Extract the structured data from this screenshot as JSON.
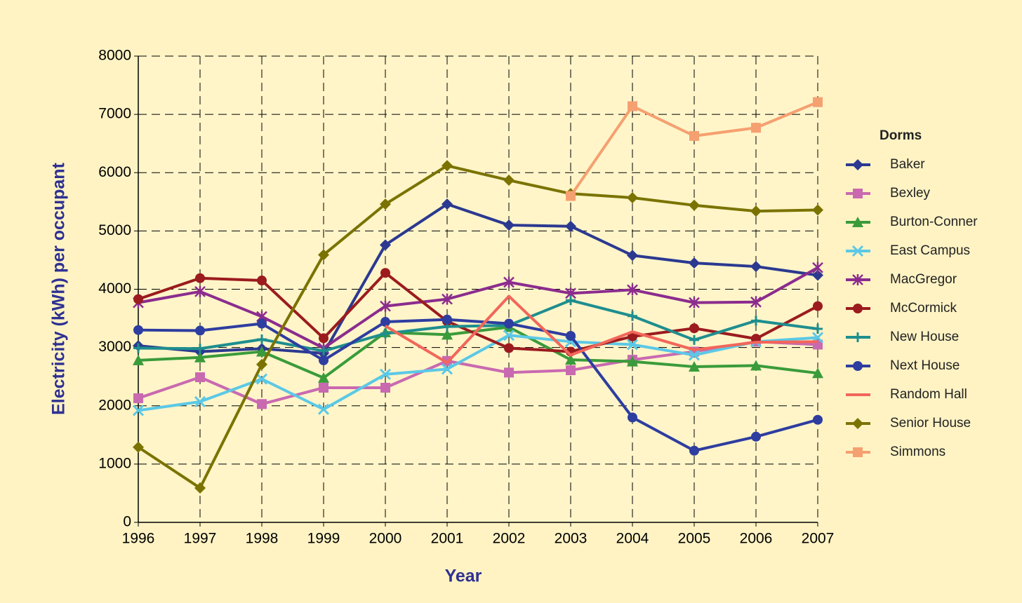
{
  "chart_data": {
    "type": "line",
    "x_label": "Year",
    "y_label": "Electricity (kWh) per occupant",
    "legend_title": "Dorms",
    "legend": "right",
    "grid": true,
    "categories": [
      "1996",
      "1997",
      "1998",
      "1999",
      "2000",
      "2001",
      "2002",
      "2003",
      "2004",
      "2005",
      "2006",
      "2007"
    ],
    "ylim": [
      0,
      8000
    ],
    "yticks": [
      0,
      1000,
      2000,
      3000,
      4000,
      5000,
      6000,
      7000,
      8000
    ],
    "series": [
      {
        "name": "Baker",
        "color": "#2B3990",
        "marker": "diamond",
        "values": [
          3030,
          2930,
          2980,
          2900,
          4760,
          5460,
          5100,
          5080,
          4580,
          4450,
          4390,
          4240
        ]
      },
      {
        "name": "Bexley",
        "color": "#C969B0",
        "marker": "square",
        "values": [
          2130,
          2490,
          2030,
          2310,
          2310,
          2770,
          2570,
          2610,
          2790,
          2930,
          3100,
          3050
        ]
      },
      {
        "name": "Burton-Conner",
        "color": "#3A9B3A",
        "marker": "triangle",
        "values": [
          2780,
          2830,
          2930,
          2480,
          3260,
          3220,
          3350,
          2790,
          2760,
          2670,
          2690,
          2560
        ]
      },
      {
        "name": "East Campus",
        "color": "#5BC8E6",
        "marker": "x",
        "values": [
          1920,
          2070,
          2460,
          1940,
          2540,
          2630,
          3210,
          3100,
          3050,
          2870,
          3100,
          3170
        ]
      },
      {
        "name": "MacGregor",
        "color": "#8B2C8E",
        "marker": "star",
        "values": [
          3770,
          3960,
          3530,
          2990,
          3710,
          3830,
          4120,
          3930,
          3990,
          3770,
          3780,
          4370
        ]
      },
      {
        "name": "McCormick",
        "color": "#9B1B1E",
        "marker": "circle",
        "values": [
          3830,
          4190,
          4150,
          3160,
          4280,
          3450,
          2990,
          2930,
          3190,
          3330,
          3150,
          3710
        ]
      },
      {
        "name": "New House",
        "color": "#1E8E8E",
        "marker": "plus",
        "values": [
          2990,
          2980,
          3140,
          2940,
          3240,
          3360,
          3380,
          3810,
          3540,
          3130,
          3460,
          3320
        ]
      },
      {
        "name": "Next House",
        "color": "#2E3DA0",
        "marker": "circle",
        "values": [
          3300,
          3290,
          3410,
          2780,
          3440,
          3480,
          3410,
          3200,
          1800,
          1230,
          1470,
          1760
        ]
      },
      {
        "name": "Random Hall",
        "color": "#F2665A",
        "marker": "none",
        "values": [
          null,
          null,
          null,
          null,
          3370,
          2740,
          3880,
          2870,
          3270,
          2960,
          3090,
          3100
        ]
      },
      {
        "name": "Senior House",
        "color": "#7A7300",
        "marker": "diamond",
        "values": [
          1290,
          590,
          2710,
          4590,
          5460,
          6120,
          5870,
          5640,
          5570,
          5440,
          5340,
          5360
        ]
      },
      {
        "name": "Simmons",
        "color": "#F5A070",
        "marker": "square",
        "values": [
          null,
          null,
          null,
          null,
          null,
          null,
          null,
          5600,
          7140,
          6630,
          6770,
          7210
        ]
      }
    ]
  }
}
